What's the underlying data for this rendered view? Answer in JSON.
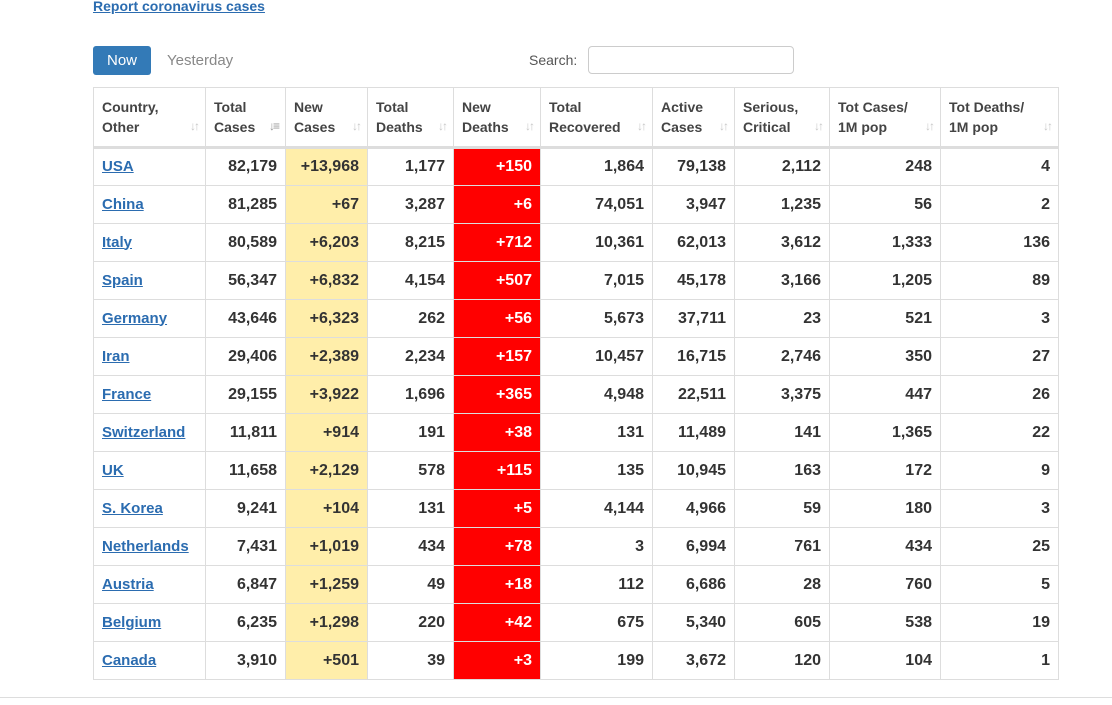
{
  "report_link": "Report coronavirus cases",
  "tabs": {
    "now": "Now",
    "yesterday": "Yesterday"
  },
  "search": {
    "label": "Search:",
    "value": "",
    "placeholder": ""
  },
  "table": {
    "headers": [
      {
        "line1": "Country,",
        "line2": "Other",
        "sort": "⇅"
      },
      {
        "line1": "Total",
        "line2": "Cases",
        "sort": "⇣"
      },
      {
        "line1": "New",
        "line2": "Cases",
        "sort": "⇅"
      },
      {
        "line1": "Total",
        "line2": "Deaths",
        "sort": "⇅"
      },
      {
        "line1": "New",
        "line2": "Deaths",
        "sort": "⇅"
      },
      {
        "line1": "Total",
        "line2": "Recovered",
        "sort": "⇅"
      },
      {
        "line1": "Active",
        "line2": "Cases",
        "sort": "⇅"
      },
      {
        "line1": "Serious,",
        "line2": "Critical",
        "sort": "⇅"
      },
      {
        "line1": "Tot Cases/",
        "line2": "1M pop",
        "sort": "⇅"
      },
      {
        "line1": "Tot Deaths/",
        "line2": "1M pop",
        "sort": "⇅"
      }
    ],
    "rows": [
      [
        "USA",
        "82,179",
        "+13,968",
        "1,177",
        "+150",
        "1,864",
        "79,138",
        "2,112",
        "248",
        "4"
      ],
      [
        "China",
        "81,285",
        "+67",
        "3,287",
        "+6",
        "74,051",
        "3,947",
        "1,235",
        "56",
        "2"
      ],
      [
        "Italy",
        "80,589",
        "+6,203",
        "8,215",
        "+712",
        "10,361",
        "62,013",
        "3,612",
        "1,333",
        "136"
      ],
      [
        "Spain",
        "56,347",
        "+6,832",
        "4,154",
        "+507",
        "7,015",
        "45,178",
        "3,166",
        "1,205",
        "89"
      ],
      [
        "Germany",
        "43,646",
        "+6,323",
        "262",
        "+56",
        "5,673",
        "37,711",
        "23",
        "521",
        "3"
      ],
      [
        "Iran",
        "29,406",
        "+2,389",
        "2,234",
        "+157",
        "10,457",
        "16,715",
        "2,746",
        "350",
        "27"
      ],
      [
        "France",
        "29,155",
        "+3,922",
        "1,696",
        "+365",
        "4,948",
        "22,511",
        "3,375",
        "447",
        "26"
      ],
      [
        "Switzerland",
        "11,811",
        "+914",
        "191",
        "+38",
        "131",
        "11,489",
        "141",
        "1,365",
        "22"
      ],
      [
        "UK",
        "11,658",
        "+2,129",
        "578",
        "+115",
        "135",
        "10,945",
        "163",
        "172",
        "9"
      ],
      [
        "S. Korea",
        "9,241",
        "+104",
        "131",
        "+5",
        "4,144",
        "4,966",
        "59",
        "180",
        "3"
      ],
      [
        "Netherlands",
        "7,431",
        "+1,019",
        "434",
        "+78",
        "3",
        "6,994",
        "761",
        "434",
        "25"
      ],
      [
        "Austria",
        "6,847",
        "+1,259",
        "49",
        "+18",
        "112",
        "6,686",
        "28",
        "760",
        "5"
      ],
      [
        "Belgium",
        "6,235",
        "+1,298",
        "220",
        "+42",
        "675",
        "5,340",
        "605",
        "538",
        "19"
      ],
      [
        "Canada",
        "3,910",
        "+501",
        "39",
        "+3",
        "199",
        "3,672",
        "120",
        "104",
        "1"
      ]
    ]
  },
  "colors": {
    "new_cases_bg": "#ffeeaa",
    "new_deaths_bg": "#ff0000",
    "link": "#2b6cb0",
    "button": "#337ab7"
  }
}
